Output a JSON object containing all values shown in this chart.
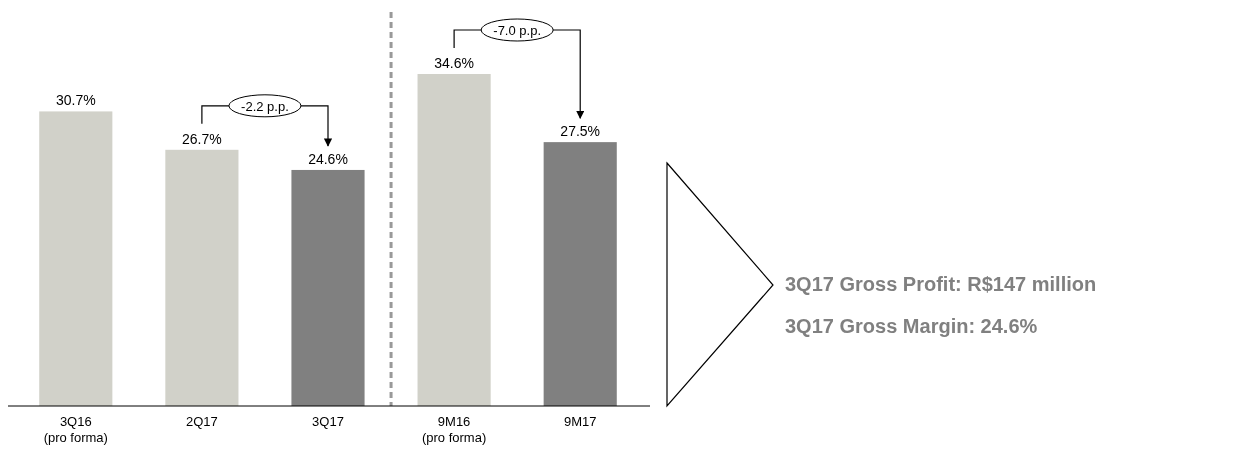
{
  "chart_data": {
    "type": "bar",
    "categories": [
      "3Q16\n(pro forma)",
      "2Q17",
      "3Q17",
      "9M16\n(pro forma)",
      "9M17"
    ],
    "values": [
      30.7,
      26.7,
      24.6,
      34.6,
      27.5
    ],
    "colors": [
      "#d1d1c9",
      "#d1d1c9",
      "#808080",
      "#d1d1c9",
      "#808080"
    ],
    "value_labels": [
      "30.7%",
      "26.7%",
      "24.6%",
      "34.6%",
      "27.5%"
    ],
    "annotations": [
      "-2.2 p.p.",
      "-7.0 p.p.",
      "3Q17 Gross Profit: R$147 million",
      "3Q17 Gross Margin: 24.6%"
    ]
  }
}
